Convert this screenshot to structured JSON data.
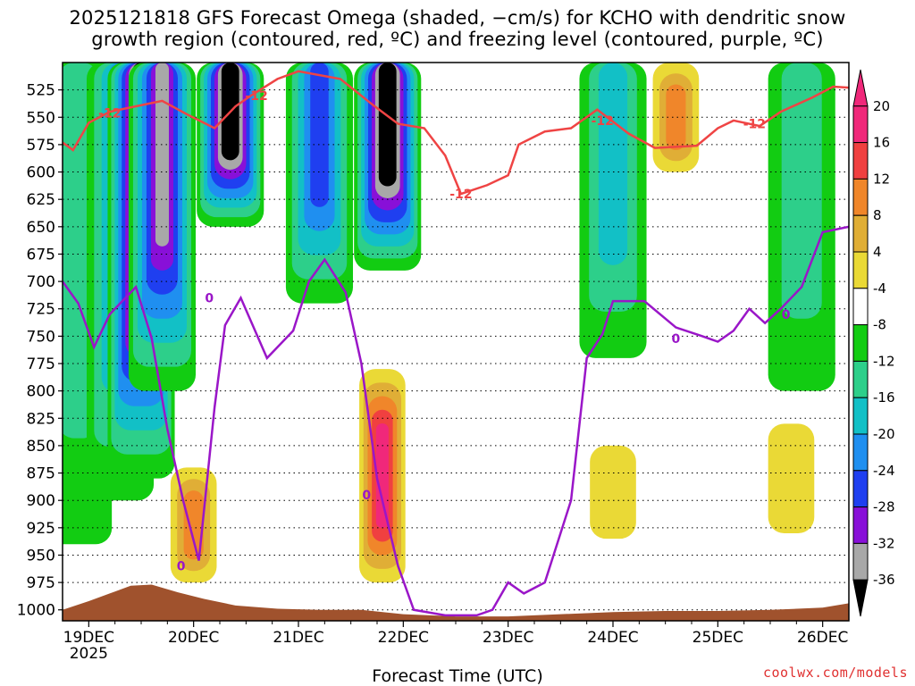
{
  "chart_data": {
    "type": "heatmap",
    "title_line1": "2025121818 GFS Forecast Omega (shaded, −cm/s) for KCHO with dendritic snow",
    "title_line2": "growth region (contoured, red, ºC) and freezing level (contoured, purple, ºC)",
    "xlabel": "Forecast Time (UTC)",
    "ylabel": "",
    "year_label": "2025",
    "x_ticks": [
      "19DEC",
      "20DEC",
      "21DEC",
      "22DEC",
      "23DEC",
      "24DEC",
      "25DEC",
      "26DEC"
    ],
    "y_ticks": [
      525,
      550,
      575,
      600,
      625,
      650,
      675,
      700,
      725,
      750,
      775,
      800,
      825,
      850,
      875,
      900,
      925,
      950,
      975,
      1000
    ],
    "y_range": [
      500,
      1010
    ],
    "x_range_days": [
      18.75,
      26.25
    ],
    "colorbar": {
      "levels": [
        20,
        16,
        12,
        8,
        4,
        -4,
        -8,
        -12,
        -16,
        -20,
        -24,
        -28,
        -32,
        -36
      ],
      "colors": [
        "#f0287a",
        "#f04040",
        "#f0862a",
        "#e0ae36",
        "#ead936",
        "#ffffff",
        "#12cc12",
        "#2dcf8a",
        "#12c0c6",
        "#1f8ff0",
        "#1f3ff0",
        "#8810d8",
        "#a8a8a8",
        "#000000"
      ]
    },
    "contours": {
      "dgz_minus12_label": "-12",
      "freezing_label": "0",
      "dgz_color": "#ef4444",
      "freezing_color": "#9a16c8",
      "terrain_color": "#a0522d"
    },
    "omega_fields": [
      {
        "t": 18.9,
        "p_top": 500,
        "p_bot": 940,
        "value": -8
      },
      {
        "t": 19.3,
        "p_top": 500,
        "p_bot": 900,
        "value": -16
      },
      {
        "t": 19.5,
        "p_top": 500,
        "p_bot": 880,
        "value": -36
      },
      {
        "t": 19.7,
        "p_top": 500,
        "p_bot": 800,
        "value": -28
      },
      {
        "t": 20.35,
        "p_top": 500,
        "p_bot": 650,
        "value": -36
      },
      {
        "t": 21.2,
        "p_top": 500,
        "p_bot": 720,
        "value": -20
      },
      {
        "t": 21.85,
        "p_top": 500,
        "p_bot": 690,
        "value": -36
      },
      {
        "t": 21.8,
        "p_top": 780,
        "p_bot": 975,
        "value": 20
      },
      {
        "t": 20.0,
        "p_top": 870,
        "p_bot": 975,
        "value": 12
      },
      {
        "t": 24.0,
        "p_top": 500,
        "p_bot": 770,
        "value": -12
      },
      {
        "t": 24.6,
        "p_top": 500,
        "p_bot": 600,
        "value": 12
      },
      {
        "t": 25.8,
        "p_top": 500,
        "p_bot": 800,
        "value": -8
      },
      {
        "t": 24.0,
        "p_top": 850,
        "p_bot": 935,
        "value": 4
      },
      {
        "t": 25.7,
        "p_top": 830,
        "p_bot": 930,
        "value": 4
      }
    ],
    "dgz_contour_points": [
      [
        18.75,
        573
      ],
      [
        18.85,
        580
      ],
      [
        19.0,
        555
      ],
      [
        19.2,
        545
      ],
      [
        19.45,
        540
      ],
      [
        19.7,
        535
      ],
      [
        19.95,
        548
      ],
      [
        20.2,
        560
      ],
      [
        20.4,
        540
      ],
      [
        20.55,
        530
      ],
      [
        20.8,
        515
      ],
      [
        21.0,
        508
      ],
      [
        21.4,
        515
      ],
      [
        21.7,
        538
      ],
      [
        21.95,
        556
      ],
      [
        22.2,
        560
      ],
      [
        22.4,
        585
      ],
      [
        22.55,
        620
      ],
      [
        22.8,
        612
      ],
      [
        23.0,
        603
      ],
      [
        23.1,
        575
      ],
      [
        23.35,
        563
      ],
      [
        23.6,
        560
      ],
      [
        23.85,
        543
      ],
      [
        24.15,
        565
      ],
      [
        24.4,
        578
      ],
      [
        24.8,
        576
      ],
      [
        25.0,
        560
      ],
      [
        25.15,
        553
      ],
      [
        25.4,
        558
      ],
      [
        25.6,
        545
      ],
      [
        25.9,
        532
      ],
      [
        26.1,
        522
      ],
      [
        26.25,
        523
      ]
    ],
    "freezing_contour_points": [
      [
        18.75,
        700
      ],
      [
        18.9,
        720
      ],
      [
        19.05,
        760
      ],
      [
        19.2,
        730
      ],
      [
        19.45,
        705
      ],
      [
        19.6,
        752
      ],
      [
        19.75,
        835
      ],
      [
        19.9,
        900
      ],
      [
        20.05,
        955
      ],
      [
        20.2,
        815
      ],
      [
        20.3,
        740
      ],
      [
        20.45,
        715
      ],
      [
        20.7,
        770
      ],
      [
        20.95,
        745
      ],
      [
        21.1,
        700
      ],
      [
        21.25,
        680
      ],
      [
        21.45,
        710
      ],
      [
        21.6,
        775
      ],
      [
        21.75,
        880
      ],
      [
        21.95,
        960
      ],
      [
        22.1,
        1000
      ],
      [
        22.4,
        1005
      ],
      [
        22.7,
        1005
      ],
      [
        22.85,
        1000
      ],
      [
        23.0,
        975
      ],
      [
        23.15,
        985
      ],
      [
        23.35,
        975
      ],
      [
        23.6,
        900
      ],
      [
        23.75,
        770
      ],
      [
        23.9,
        748
      ],
      [
        24.0,
        718
      ],
      [
        24.3,
        718
      ],
      [
        24.6,
        742
      ],
      [
        24.85,
        750
      ],
      [
        25.0,
        755
      ],
      [
        25.15,
        745
      ],
      [
        25.3,
        725
      ],
      [
        25.45,
        738
      ],
      [
        25.6,
        725
      ],
      [
        25.8,
        705
      ],
      [
        26.0,
        655
      ],
      [
        26.25,
        650
      ]
    ],
    "terrain_points": [
      [
        18.75,
        1000
      ],
      [
        19.0,
        992
      ],
      [
        19.2,
        985
      ],
      [
        19.4,
        978
      ],
      [
        19.6,
        977
      ],
      [
        19.85,
        984
      ],
      [
        20.1,
        990
      ],
      [
        20.4,
        996
      ],
      [
        20.8,
        999
      ],
      [
        21.2,
        1000
      ],
      [
        21.6,
        1000
      ],
      [
        22.0,
        1004
      ],
      [
        22.5,
        1006
      ],
      [
        23.0,
        1006
      ],
      [
        23.5,
        1004
      ],
      [
        24.0,
        1002
      ],
      [
        24.5,
        1001
      ],
      [
        25.0,
        1001
      ],
      [
        25.5,
        1000
      ],
      [
        26.0,
        998
      ],
      [
        26.25,
        994
      ]
    ]
  },
  "credit": "coolwx.com/models"
}
